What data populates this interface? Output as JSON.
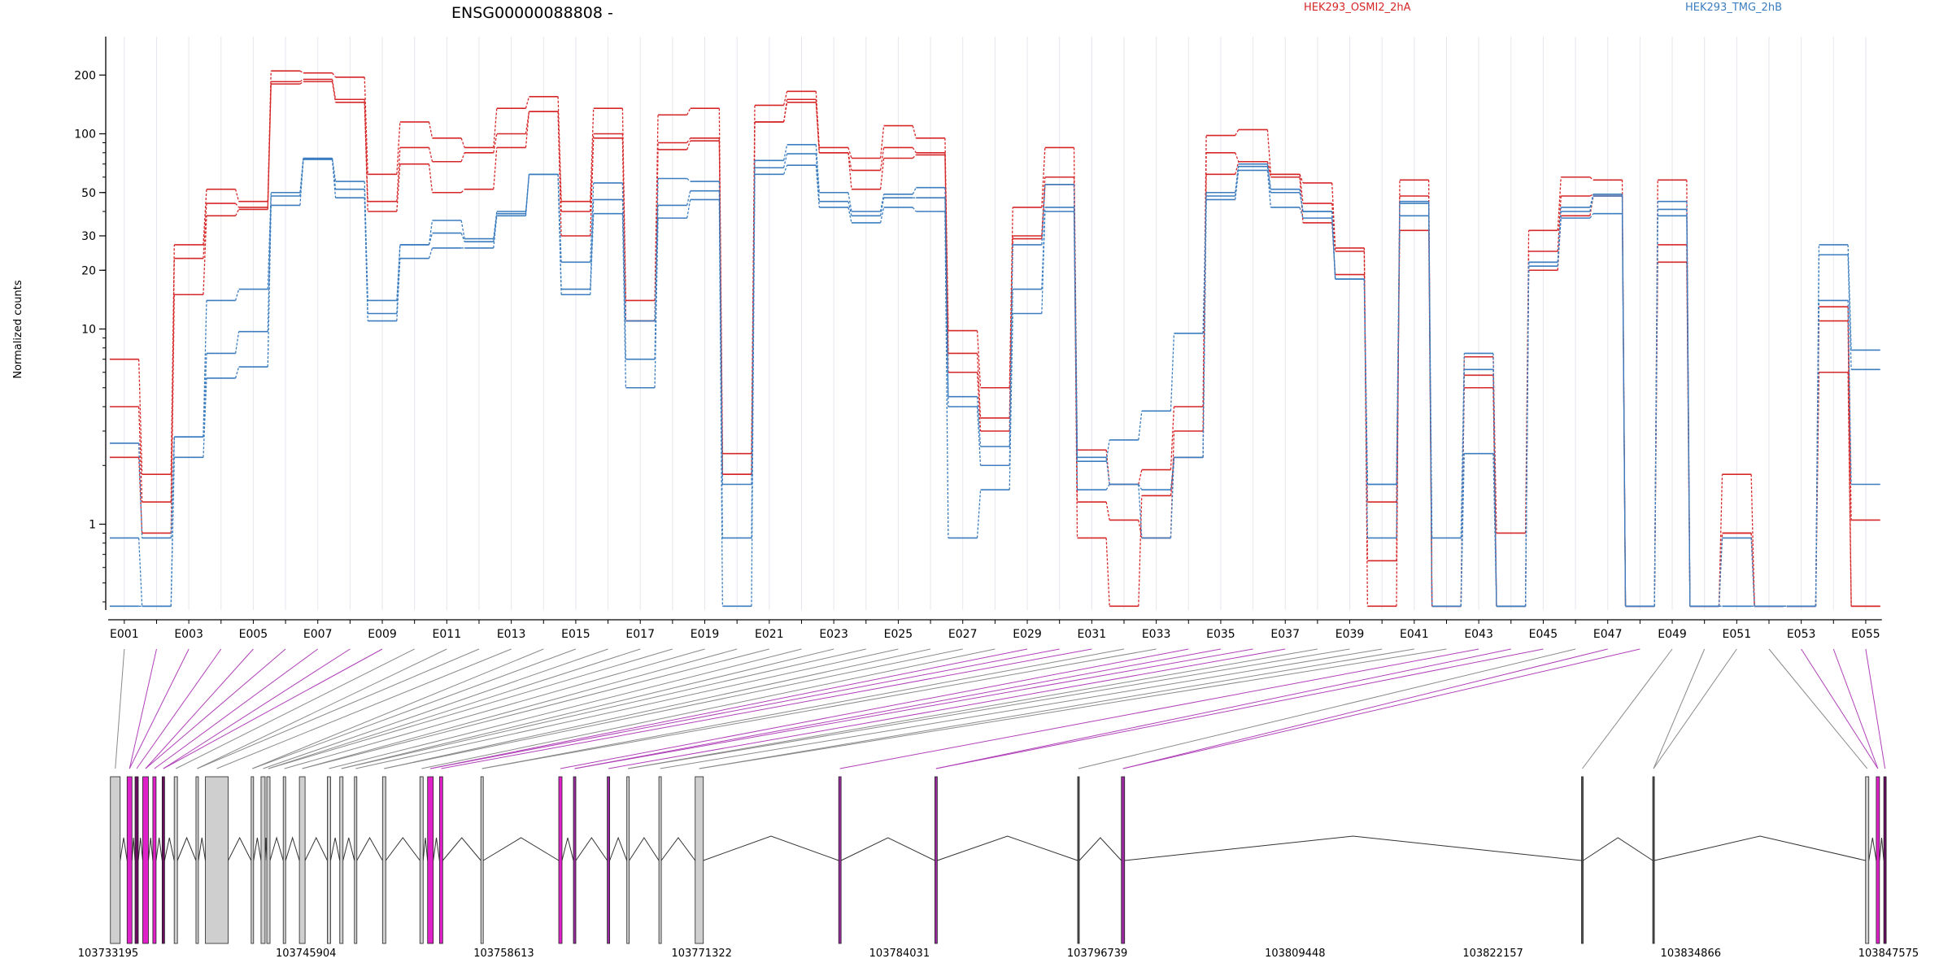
{
  "chart_data": {
    "type": "line",
    "title": "ENSG00000088808 -",
    "ylabel": "Normalized counts",
    "y_scale": "log",
    "ylim": [
      0.4,
      300
    ],
    "y_ticks": [
      1,
      10,
      20,
      30,
      50,
      100,
      200
    ],
    "y_tick_labels": [
      "1",
      "10",
      "20",
      "30",
      "50",
      "100",
      "200"
    ],
    "categories": [
      "E001",
      "E002",
      "E003",
      "E004",
      "E005",
      "E006",
      "E007",
      "E008",
      "E009",
      "E010",
      "E011",
      "E012",
      "E013",
      "E014",
      "E015",
      "E016",
      "E017",
      "E018",
      "E019",
      "E020",
      "E021",
      "E022",
      "E023",
      "E024",
      "E025",
      "E026",
      "E027",
      "E028",
      "E029",
      "E030",
      "E031",
      "E032",
      "E033",
      "E034",
      "E035",
      "E036",
      "E037",
      "E038",
      "E039",
      "E040",
      "E041",
      "E042",
      "E043",
      "E044",
      "E045",
      "E046",
      "E047",
      "E048",
      "E049",
      "E050",
      "E051",
      "E052",
      "E053",
      "E054",
      "E055"
    ],
    "x_tick_labels": [
      "E001",
      "E003",
      "E005",
      "E007",
      "E009",
      "E011",
      "E013",
      "E015",
      "E017",
      "E019",
      "E021",
      "E023",
      "E025",
      "E027",
      "E029",
      "E031",
      "E033",
      "E035",
      "E037",
      "E039",
      "E041",
      "E043",
      "E045",
      "E047",
      "E049",
      "E051",
      "E053",
      "E055"
    ],
    "legend": [
      {
        "name": "HEK293_OSMI2_2hA",
        "color": "#d62728"
      },
      {
        "name": "HEK293_TMG_2hB",
        "color": "#3b7dbf"
      }
    ],
    "series": [
      {
        "name": "HEK293_OSMI2_2hA",
        "color": "#d62728",
        "values": [
          7.0,
          1.8,
          27,
          52,
          45,
          210,
          205,
          195,
          62,
          115,
          95,
          85,
          135,
          155,
          45,
          135,
          14,
          125,
          135,
          2.3,
          140,
          165,
          85,
          75,
          110,
          95,
          9.8,
          5.0,
          42,
          85,
          2.4,
          1.6,
          1.9,
          4.0,
          98,
          105,
          62,
          56,
          26,
          0.38,
          58,
          0.38,
          7.2,
          0.9,
          32,
          60,
          58,
          0.38,
          58,
          0.38,
          1.8,
          0.38,
          0.38,
          6.0,
          0.38
        ]
      },
      {
        "name": "HEK293_OSMI2_2hA",
        "color": "#d62728",
        "values": [
          4.0,
          1.3,
          23,
          44,
          42,
          185,
          190,
          150,
          45,
          85,
          72,
          80,
          100,
          130,
          40,
          100,
          11,
          90,
          95,
          1.8,
          115,
          150,
          80,
          65,
          85,
          80,
          7.5,
          3.5,
          30,
          60,
          1.3,
          1.05,
          0.85,
          3.0,
          80,
          72,
          62,
          44,
          25,
          0.65,
          48,
          0.38,
          5.8,
          0.38,
          25,
          48,
          49,
          0.38,
          27,
          0.38,
          0.9,
          0.38,
          0.38,
          13,
          1.05
        ]
      },
      {
        "name": "HEK293_OSMI2_2hA",
        "color": "#d62728",
        "values": [
          2.2,
          0.9,
          15,
          38,
          41,
          180,
          185,
          145,
          40,
          70,
          50,
          52,
          85,
          130,
          30,
          95,
          11,
          83,
          92,
          1.8,
          115,
          145,
          80,
          52,
          75,
          78,
          6.0,
          3.0,
          29,
          55,
          0.85,
          0.38,
          1.4,
          2.2,
          62,
          72,
          60,
          35,
          19,
          1.3,
          32,
          0.38,
          5.0,
          0.38,
          20,
          38,
          48,
          0.38,
          22,
          0.38,
          0.9,
          0.38,
          0.38,
          11,
          0.38
        ]
      },
      {
        "name": "HEK293_TMG_2hB",
        "color": "#3b7dbf",
        "values": [
          2.6,
          0.85,
          2.8,
          14,
          16,
          50,
          75,
          57,
          14,
          27,
          36,
          29,
          40,
          62,
          22,
          56,
          7.0,
          59,
          57,
          1.6,
          73,
          88,
          50,
          40,
          49,
          53,
          4.5,
          2.5,
          27,
          55,
          2.1,
          2.7,
          3.8,
          9.5,
          50,
          70,
          52,
          40,
          18,
          1.6,
          45,
          0.85,
          7.5,
          0.38,
          22,
          42,
          49,
          0.38,
          45,
          0.38,
          0.85,
          0.38,
          0.38,
          27,
          7.8
        ]
      },
      {
        "name": "HEK293_TMG_2hB",
        "color": "#3b7dbf",
        "values": [
          0.85,
          0.38,
          2.8,
          7.5,
          9.7,
          48,
          74,
          52,
          12,
          27,
          31,
          28,
          39,
          62,
          16,
          46,
          11,
          43,
          51,
          0.85,
          67,
          79,
          45,
          38,
          47,
          47,
          4.0,
          2.0,
          16,
          42,
          2.2,
          1.6,
          1.5,
          2.2,
          48,
          68,
          50,
          40,
          18,
          1.6,
          38,
          0.38,
          2.3,
          0.38,
          22,
          40,
          48,
          0.38,
          41,
          0.38,
          0.38,
          0.38,
          0.38,
          14,
          1.6
        ]
      },
      {
        "name": "HEK293_TMG_2hB",
        "color": "#3b7dbf",
        "values": [
          0.38,
          0.38,
          2.2,
          5.6,
          6.4,
          43,
          74,
          47,
          11,
          23,
          26,
          26,
          38,
          62,
          15,
          39,
          5.0,
          37,
          46,
          0.38,
          62,
          69,
          42,
          35,
          42,
          40,
          0.85,
          1.5,
          12,
          40,
          1.5,
          1.6,
          0.85,
          2.2,
          46,
          65,
          42,
          37,
          18,
          0.85,
          44,
          0.38,
          6.2,
          0.38,
          21,
          37,
          39,
          0.38,
          38,
          0.38,
          0.38,
          0.38,
          0.38,
          24,
          6.2
        ]
      }
    ],
    "genome_axis": {
      "tick_labels": [
        "103733195",
        "103745904",
        "103758613",
        "103771322",
        "103784031",
        "103796739",
        "103809448",
        "103822157",
        "103834866",
        "103847575"
      ]
    },
    "grid": "vertical light lines per exon",
    "legend_placement": "top-right"
  }
}
